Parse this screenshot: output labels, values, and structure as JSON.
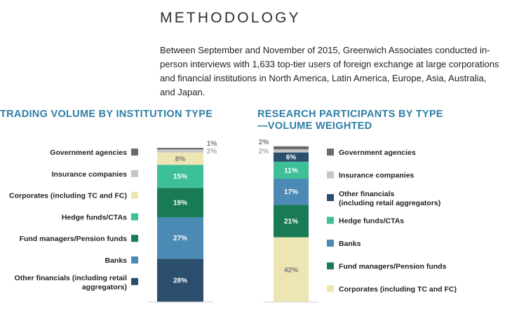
{
  "methodology": {
    "title": "METHODOLOGY",
    "body": "Between September and November of 2015, Greenwich Associates conducted in-person interviews with 1,633 top-tier users of foreign exchange at large corporations and financial institutions in North America, Latin America, Europe, Asia, Australia, and Japan."
  },
  "chart_data": [
    {
      "type": "bar",
      "stacked": true,
      "title": "TRADING VOLUME  BY INSTITUTION TYPE",
      "legend_position": "left",
      "series": [
        {
          "name": "Other financials (including retail aggregators)",
          "value": 28,
          "label": "28%",
          "color": "#2a4e6c",
          "label_color": "#ffffff"
        },
        {
          "name": "Banks",
          "value": 27,
          "label": "27%",
          "color": "#4b8ab5",
          "label_color": "#ffffff"
        },
        {
          "name": "Fund managers/Pension funds",
          "value": 19,
          "label": "19%",
          "color": "#197a56",
          "label_color": "#ffffff"
        },
        {
          "name": "Hedge funds/CTAs",
          "value": 15,
          "label": "15%",
          "color": "#3dbf98",
          "label_color": "#ffffff"
        },
        {
          "name": "Corporates (including TC and FC)",
          "value": 8,
          "label": "8%",
          "color": "#ede5b4",
          "label_color": "#777777"
        },
        {
          "name": "Insurance companies",
          "value": 2,
          "label": "2%",
          "color": "#c6c6c6",
          "label_color": "#aaaaaa"
        },
        {
          "name": "Government agencies",
          "value": 1,
          "label": "1%",
          "color": "#6b6b6b",
          "label_color": "#777777"
        }
      ],
      "legend_order": [
        "Government agencies",
        "Insurance companies",
        "Corporates (including TC and FC)",
        "Hedge funds/CTAs",
        "Fund managers/Pension funds",
        "Banks",
        "Other financials (including retail aggregators)"
      ]
    },
    {
      "type": "bar",
      "stacked": true,
      "title": "RESEARCH PARTICIPANTS BY TYPE —VOLUME WEIGHTED",
      "legend_position": "right",
      "series": [
        {
          "name": "Corporates (including TC and FC)",
          "value": 42,
          "label": "42%",
          "color": "#ede5b4",
          "label_color": "#777777"
        },
        {
          "name": "Fund managers/Pension funds",
          "value": 21,
          "label": "21%",
          "color": "#197a56",
          "label_color": "#ffffff"
        },
        {
          "name": "Banks",
          "value": 17,
          "label": "17%",
          "color": "#4b8ab5",
          "label_color": "#ffffff"
        },
        {
          "name": "Hedge funds/CTAs",
          "value": 11,
          "label": "11%",
          "color": "#3dbf98",
          "label_color": "#ffffff"
        },
        {
          "name": "Other financials (including retail aggregators)",
          "value": 6,
          "label": "6%",
          "color": "#2a4e6c",
          "label_color": "#ffffff"
        },
        {
          "name": "Insurance companies",
          "value": 2,
          "label": "2%",
          "color": "#c6c6c6",
          "label_color": "#aaaaaa"
        },
        {
          "name": "Government agencies",
          "value": 2,
          "label": "2%",
          "color": "#6b6b6b",
          "label_color": "#777777"
        }
      ],
      "legend_order": [
        "Government agencies",
        "Insurance companies",
        "Other financials (including retail aggregators)",
        "Hedge funds/CTAs",
        "Banks",
        "Fund managers/Pension funds",
        "Corporates (including TC and FC)"
      ]
    }
  ]
}
